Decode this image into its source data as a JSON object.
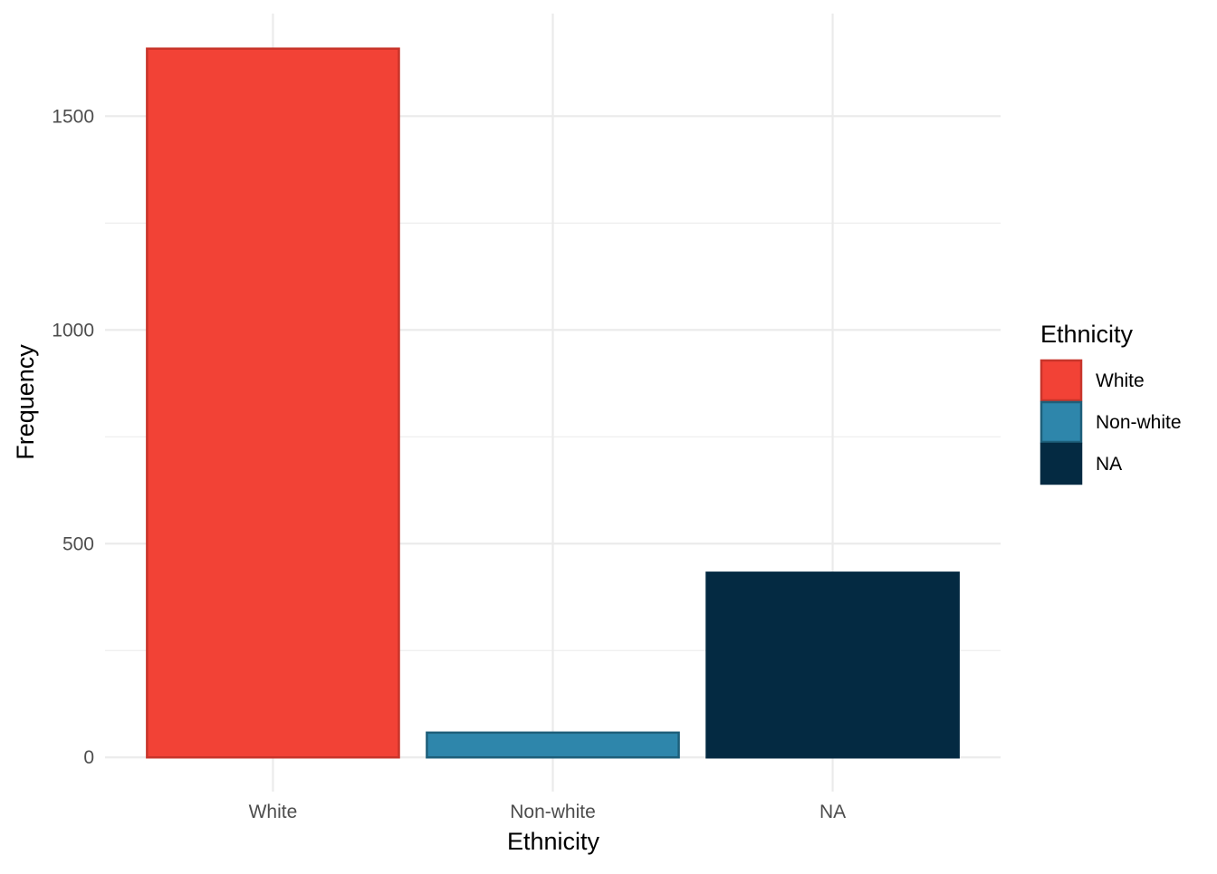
{
  "chart_data": {
    "type": "bar",
    "categories": [
      "White",
      "Non-white",
      "NA"
    ],
    "values": [
      1658,
      58,
      432
    ],
    "colors": [
      "#F24236",
      "#2E86AB",
      "#042A42"
    ],
    "outline_colors": [
      "#C8352B",
      "#1E5F7A",
      "#042A42"
    ],
    "xlabel": "Ethnicity",
    "ylabel": "Frequency",
    "ylim": [
      -80,
      1740
    ],
    "yticks": [
      0,
      500,
      1000,
      1500
    ],
    "ytick_labels": [
      "0",
      "500",
      "1000",
      "1500"
    ],
    "y_minor_ticks": [
      250,
      750,
      1250
    ],
    "grid": true,
    "legend": {
      "title": "Ethnicity",
      "position": "right",
      "entries": [
        "White",
        "Non-white",
        "NA"
      ]
    }
  }
}
